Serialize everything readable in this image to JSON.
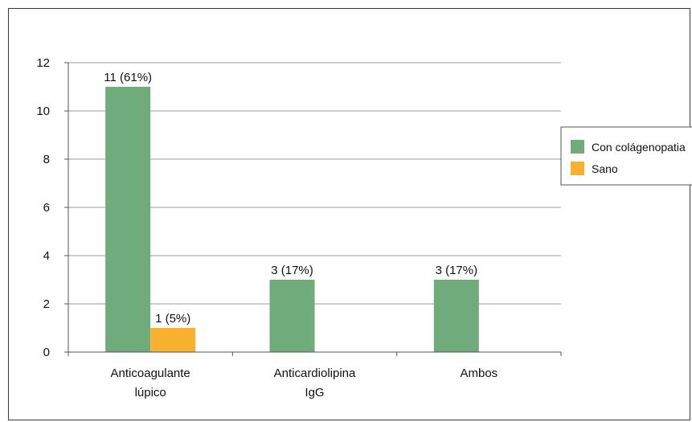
{
  "chart_data": {
    "type": "bar",
    "categories": [
      [
        "Anticoagulante",
        "lúpico"
      ],
      [
        "Anticardiolipina",
        "IgG"
      ],
      [
        "Ambos"
      ]
    ],
    "series": [
      {
        "name": "Con colágenopatia",
        "values": [
          11,
          3,
          3
        ],
        "labels": [
          "11 (61%)",
          "3 (17%)",
          "3 (17%)"
        ],
        "color": "#6fab7b"
      },
      {
        "name": "Sano",
        "values": [
          1,
          0,
          0
        ],
        "labels": [
          "1 (5%)",
          "",
          ""
        ],
        "color": "#f7b12f"
      }
    ],
    "ylim": [
      0,
      12
    ],
    "yticks": [
      0,
      2,
      4,
      6,
      8,
      10,
      12
    ],
    "grid": true,
    "legend_position": "right"
  }
}
